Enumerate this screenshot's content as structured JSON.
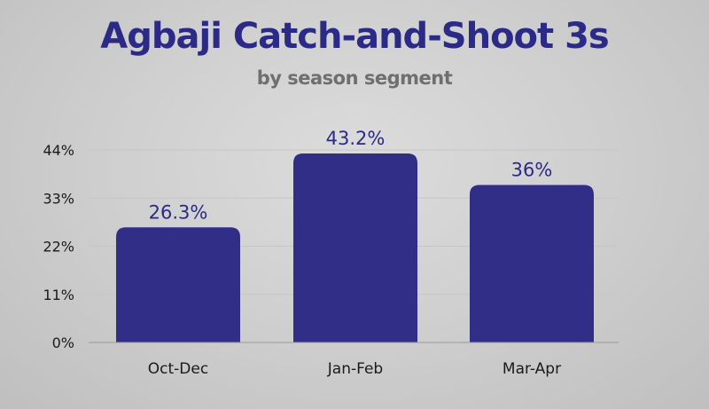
{
  "chart_data": {
    "type": "bar",
    "title": "Agbaji Catch-and-Shoot 3s",
    "subtitle": "by season segment",
    "xlabel": "",
    "ylabel": "",
    "categories": [
      "Oct-Dec",
      "Jan-Feb",
      "Mar-Apr"
    ],
    "values": [
      26.3,
      43.2,
      36
    ],
    "data_labels": [
      "26.3%",
      "43.2%",
      "36%"
    ],
    "ylim": [
      0,
      44
    ],
    "yticks": [
      0,
      11,
      22,
      33,
      44
    ],
    "ytick_labels": [
      "0%",
      "11%",
      "22%",
      "33%",
      "44%"
    ],
    "grid": true,
    "legend": "none",
    "colors": {
      "bar": "#302e86",
      "data_label": "#2b2a86",
      "title": "#2b2a86",
      "subtitle": "#6f6f6f",
      "tick_label": "#1a1a1a",
      "grid": "#c6c6c6",
      "axis": "#9a9a9a"
    }
  }
}
